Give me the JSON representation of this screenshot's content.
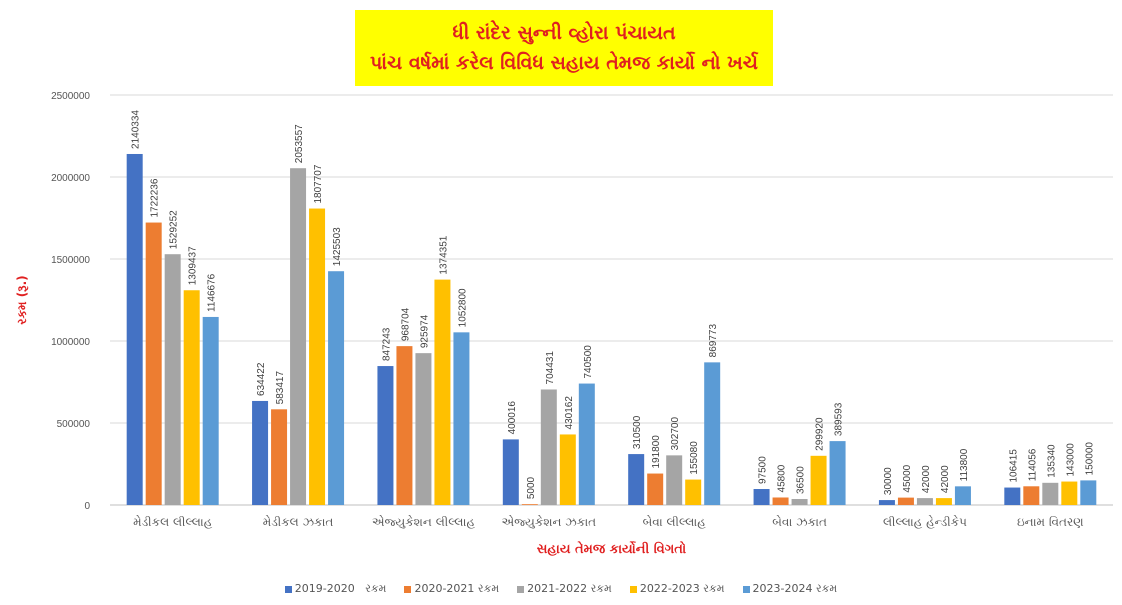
{
  "chart_data": {
    "type": "bar",
    "title": [
      "ધી રાંદેર સુન્ની વ્હોરા પંચાયત",
      "પાંચ વર્ષમાં કરેલ વિવિધ સહાય તેમજ કાર્યો નો ખર્ચ"
    ],
    "xlabel": "સહાય તેમજ કાર્યોની વિગતો",
    "ylabel": "રકમ (રૂ.)",
    "ylim": [
      0,
      2500000
    ],
    "yticks": [
      0,
      500000,
      1000000,
      1500000,
      2000000,
      2500000
    ],
    "grid": true,
    "legend_position": "bottom",
    "categories": [
      "મેડીકલ લીલ્લાહ",
      "મેડીકલ ઝકાત",
      "એજ્યુકેશન લીલ્લાહ",
      "એજ્યુકેશન ઝકાત",
      "બેવા લીલ્લાહ",
      "બેવા ઝકાત",
      "લીલ્લાહ હેન્ડીકેપ",
      "ઇનામ વિતરણ"
    ],
    "series": [
      {
        "name": "2019-2020   રકમ",
        "color": "#4472c4",
        "values": [
          2140334,
          634422,
          847243,
          400016,
          310500,
          97500,
          30000,
          106415
        ]
      },
      {
        "name": "2020-2021 રકમ",
        "color": "#ed7d31",
        "values": [
          1722236,
          583417,
          968704,
          5000,
          191800,
          45800,
          45000,
          114056
        ]
      },
      {
        "name": "2021-2022 રકમ",
        "color": "#a5a5a5",
        "values": [
          1529252,
          2053557,
          925974,
          704431,
          302700,
          36500,
          42000,
          135340
        ]
      },
      {
        "name": "2022-2023 રકમ",
        "color": "#ffc000",
        "values": [
          1309437,
          1807707,
          1374351,
          430162,
          155080,
          299920,
          42000,
          143000
        ]
      },
      {
        "name": "2023-2024 રકમ",
        "color": "#5b9bd5",
        "values": [
          1146676,
          1425503,
          1052800,
          740500,
          869773,
          389593,
          113800,
          150000
        ]
      }
    ]
  }
}
